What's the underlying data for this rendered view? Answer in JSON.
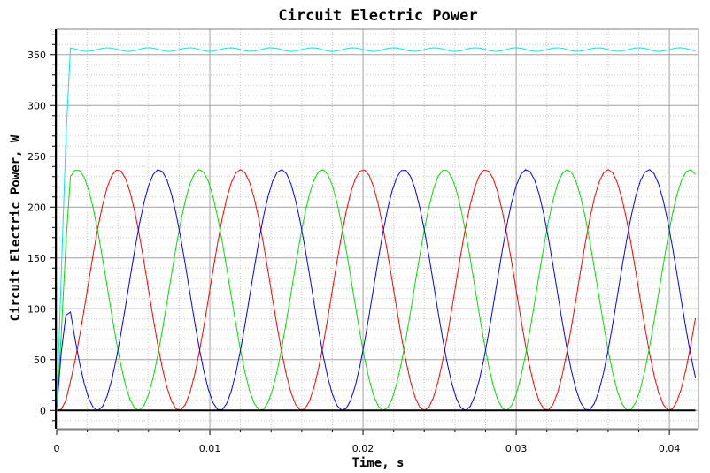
{
  "chart_data": {
    "type": "line",
    "title": "Circuit Electric Power",
    "xlabel": "Time, s",
    "ylabel": "Circuit Electric Power, W",
    "xlim": [
      0,
      0.0419
    ],
    "ylim": [
      -18,
      375
    ],
    "x_ticks": [
      0,
      0.01,
      0.02,
      0.03,
      0.04
    ],
    "x_tick_labels": [
      "0",
      "0.01",
      "0.02",
      "0.03",
      "0.04"
    ],
    "y_ticks": [
      0,
      50,
      100,
      150,
      200,
      250,
      300,
      350
    ],
    "y_tick_labels": [
      "0",
      "50",
      "100",
      "150",
      "200",
      "250",
      "300",
      "350"
    ],
    "grid": true,
    "legend": "none",
    "phase_period_s": 0.008,
    "phase_peak_W": 237,
    "total_W": 355,
    "series": [
      {
        "color": "#ff0000",
        "shape": "sin^2",
        "phase_shift_deg": 0,
        "peak_W": 237
      },
      {
        "color": "#00e000",
        "shape": "sin^2",
        "phase_shift_deg": 120,
        "peak_W": 237
      },
      {
        "color": "#0000ff",
        "shape": "sin^2",
        "phase_shift_deg": 240,
        "peak_W": 237
      },
      {
        "color": "#00e8e8",
        "shape": "sum",
        "peak_W": 355
      },
      {
        "color": "#000000",
        "shape": "zero",
        "peak_W": 0
      }
    ]
  }
}
